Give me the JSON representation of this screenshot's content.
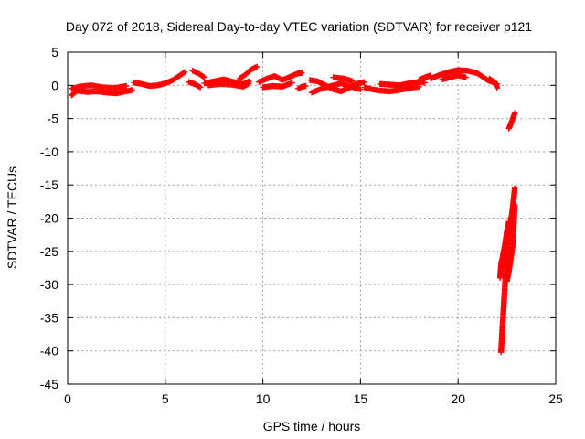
{
  "chart_data": {
    "type": "scatter",
    "title": "Day 072 of 2018, Sidereal Day-to-day VTEC variation (SDTVAR) for receiver p121",
    "xlabel": "GPS time / hours",
    "ylabel": "SDTVAR / TECUs",
    "xlim": [
      0,
      25
    ],
    "ylim": [
      -45,
      5
    ],
    "xticks": [
      0,
      5,
      10,
      15,
      20,
      25
    ],
    "yticks": [
      5,
      0,
      -5,
      -10,
      -15,
      -20,
      -25,
      -30,
      -35,
      -40,
      -45
    ],
    "grid": true,
    "marker": "+",
    "color": "#ff0000",
    "series": [
      {
        "name": "SDTVAR",
        "segments": [
          {
            "x": [
              0.2,
              0.5,
              1.0,
              1.5,
              2.0,
              2.5,
              3.0,
              3.3
            ],
            "y": [
              -1.5,
              -0.8,
              -1.0,
              -0.9,
              -1.1,
              -1.2,
              -0.9,
              -0.7
            ]
          },
          {
            "x": [
              0.2,
              0.6,
              1.2,
              1.8,
              2.4,
              3.0
            ],
            "y": [
              -0.5,
              -0.2,
              0.0,
              -0.3,
              -0.4,
              -0.1
            ]
          },
          {
            "x": [
              3.4,
              3.8,
              4.2,
              4.6,
              5.0,
              5.4,
              5.8,
              6.0
            ],
            "y": [
              0.4,
              0.2,
              -0.1,
              0.0,
              0.3,
              0.8,
              1.6,
              2.0
            ]
          },
          {
            "x": [
              6.2,
              6.5,
              6.8
            ],
            "y": [
              0.5,
              0.2,
              -0.3
            ]
          },
          {
            "x": [
              6.4,
              6.7,
              7.0
            ],
            "y": [
              2.2,
              1.8,
              1.2
            ]
          },
          {
            "x": [
              7.0,
              7.5,
              8.0,
              8.5,
              9.0,
              9.3
            ],
            "y": [
              0.3,
              0.6,
              0.9,
              0.5,
              0.2,
              0.6
            ]
          },
          {
            "x": [
              7.2,
              7.8,
              8.4,
              9.0,
              9.3
            ],
            "y": [
              0.0,
              0.2,
              0.1,
              -0.2,
              0.3
            ]
          },
          {
            "x": [
              8.8,
              9.1,
              9.4,
              9.7
            ],
            "y": [
              1.0,
              1.6,
              2.4,
              2.8
            ]
          },
          {
            "x": [
              9.8,
              10.2,
              10.6,
              11.0,
              11.4,
              11.8,
              12.0
            ],
            "y": [
              0.5,
              1.0,
              1.4,
              0.8,
              1.3,
              1.8,
              1.9
            ]
          },
          {
            "x": [
              10.0,
              10.5,
              11.0,
              11.5
            ],
            "y": [
              -0.3,
              -0.1,
              -0.2,
              0.4
            ]
          },
          {
            "x": [
              11.8,
              12.0,
              12.2
            ],
            "y": [
              -0.5,
              -0.2,
              -0.1
            ]
          },
          {
            "x": [
              12.4,
              12.8,
              13.2,
              13.6,
              14.0,
              14.4,
              14.8,
              15.2
            ],
            "y": [
              0.8,
              0.6,
              0.0,
              -0.6,
              -0.9,
              -0.4,
              0.2,
              0.5
            ]
          },
          {
            "x": [
              12.5,
              13.0,
              13.5,
              14.0,
              14.5,
              15.0
            ],
            "y": [
              -1.1,
              -0.5,
              -0.1,
              0.3,
              -0.2,
              -0.6
            ]
          },
          {
            "x": [
              13.6,
              14.2,
              14.6
            ],
            "y": [
              1.2,
              1.0,
              0.6
            ]
          },
          {
            "x": [
              15.2,
              15.6,
              16.0,
              16.5,
              17.0,
              17.5,
              18.0
            ],
            "y": [
              -0.3,
              -0.6,
              -0.8,
              -0.9,
              -0.7,
              -0.4,
              -0.2
            ]
          },
          {
            "x": [
              16.0,
              16.5,
              17.0,
              17.5,
              18.0,
              18.3
            ],
            "y": [
              0.2,
              0.1,
              0.0,
              0.3,
              0.5,
              0.4
            ]
          },
          {
            "x": [
              18.0,
              18.3,
              18.6
            ],
            "y": [
              0.8,
              1.2,
              1.5
            ]
          },
          {
            "x": [
              18.6,
              19.0,
              19.5,
              20.0,
              20.5,
              21.0,
              21.5,
              22.0
            ],
            "y": [
              1.0,
              1.5,
              2.0,
              2.3,
              2.2,
              1.8,
              0.8,
              0.2
            ]
          },
          {
            "x": [
              19.2,
              19.6,
              20.0,
              20.4
            ],
            "y": [
              0.9,
              1.2,
              1.5,
              1.2
            ]
          },
          {
            "x": [
              21.6,
              21.9,
              22.0
            ],
            "y": [
              1.0,
              0.4,
              -0.4
            ]
          },
          {
            "x": [
              22.6,
              22.7,
              22.8,
              22.9
            ],
            "y": [
              -6.5,
              -5.8,
              -5.0,
              -4.2
            ]
          },
          {
            "x": [
              22.2,
              22.25,
              22.3,
              22.35,
              22.4,
              22.45,
              22.5,
              22.55
            ],
            "y": [
              -40.2,
              -37.5,
              -35.0,
              -32.5,
              -30.0,
              -27.5,
              -25.0,
              -23.0
            ]
          },
          {
            "x": [
              22.15,
              22.2,
              22.3,
              22.4,
              22.5,
              22.6
            ],
            "y": [
              -29.0,
              -27.0,
              -25.5,
              -24.0,
              -22.0,
              -20.5
            ]
          },
          {
            "x": [
              22.5,
              22.6,
              22.7,
              22.8,
              22.85,
              22.9
            ],
            "y": [
              -29.5,
              -28.0,
              -26.0,
              -24.0,
              -21.0,
              -18.0
            ]
          },
          {
            "x": [
              22.55,
              22.65,
              22.75,
              22.85,
              22.9
            ],
            "y": [
              -23.0,
              -21.0,
              -19.5,
              -17.0,
              -15.5
            ]
          }
        ]
      }
    ]
  }
}
